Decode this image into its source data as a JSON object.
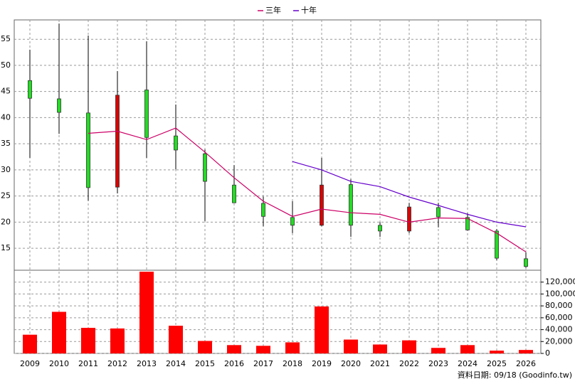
{
  "chart_data": [
    {
      "type": "candlestick",
      "open": [
        47.1,
        43.6,
        40.9,
        26.7,
        45.3,
        36.5,
        33.1,
        27.1,
        23.6,
        20.9,
        19.4,
        27.2,
        19.4,
        18.3,
        22.8,
        20.9,
        18.3,
        13.0
      ],
      "high": [
        53.0,
        58.0,
        55.7,
        48.9,
        54.6,
        42.5,
        33.9,
        30.9,
        24.9,
        24.0,
        32.3,
        28.2,
        20.0,
        23.7,
        23.7,
        21.7,
        18.7,
        14.2
      ],
      "low": [
        32.3,
        36.9,
        24.1,
        25.5,
        32.3,
        30.1,
        20.2,
        23.8,
        19.2,
        17.9,
        19.2,
        17.2,
        17.2,
        17.9,
        19.0,
        18.4,
        12.7,
        11.3
      ],
      "close": [
        43.7,
        41.0,
        26.6,
        44.3,
        36.2,
        33.8,
        27.8,
        23.7,
        21.1,
        19.4,
        27.1,
        19.4,
        18.3,
        22.9,
        21.0,
        18.5,
        13.1,
        11.5
      ],
      "up_color": "#dd0000",
      "down_color": "#22dd22",
      "series": [
        {
          "name": "三年",
          "color": "#cc0066",
          "values": [
            null,
            null,
            37.0,
            37.4,
            35.8,
            38.0,
            33.4,
            28.5,
            24.0,
            21.1,
            22.5,
            21.8,
            21.5,
            20.0,
            20.8,
            20.7,
            17.9,
            14.3
          ]
        },
        {
          "name": "十年",
          "color": "#6600cc",
          "values": [
            null,
            null,
            null,
            null,
            null,
            null,
            null,
            null,
            null,
            31.6,
            30.0,
            27.8,
            26.8,
            24.8,
            23.2,
            21.5,
            20.0,
            19.1
          ]
        }
      ],
      "ylim": [
        10.8,
        58.7
      ],
      "yticks": [
        15,
        20,
        25,
        30,
        35,
        40,
        45,
        50,
        55
      ],
      "grid": true
    },
    {
      "type": "bar",
      "categories": [
        "2009",
        "2010",
        "2011",
        "2012",
        "2013",
        "2014",
        "2015",
        "2016",
        "2017",
        "2018",
        "2019",
        "2020",
        "2021",
        "2022",
        "2023",
        "2024",
        "2025",
        "2026"
      ],
      "values": [
        31500,
        70000,
        43000,
        42000,
        137500,
        46600,
        21000,
        14000,
        12800,
        18600,
        79000,
        23300,
        15000,
        22000,
        9300,
        14000,
        4700,
        5800
      ],
      "color": "#ff0000",
      "ylim": [
        0,
        140000
      ],
      "yticks": [
        0,
        {
          "value": 20000,
          "label": "20,000"
        },
        {
          "value": 40000,
          "label": "40,000"
        },
        {
          "value": 60000,
          "label": "60,000"
        },
        {
          "value": 80000,
          "label": "80,000"
        },
        {
          "value": 100000,
          "label": "100,000"
        },
        {
          "value": 120000,
          "label": "120,000"
        }
      ],
      "grid": true,
      "footnote": "資料日期: 09/18 (Goodinfo.tw)"
    }
  ]
}
